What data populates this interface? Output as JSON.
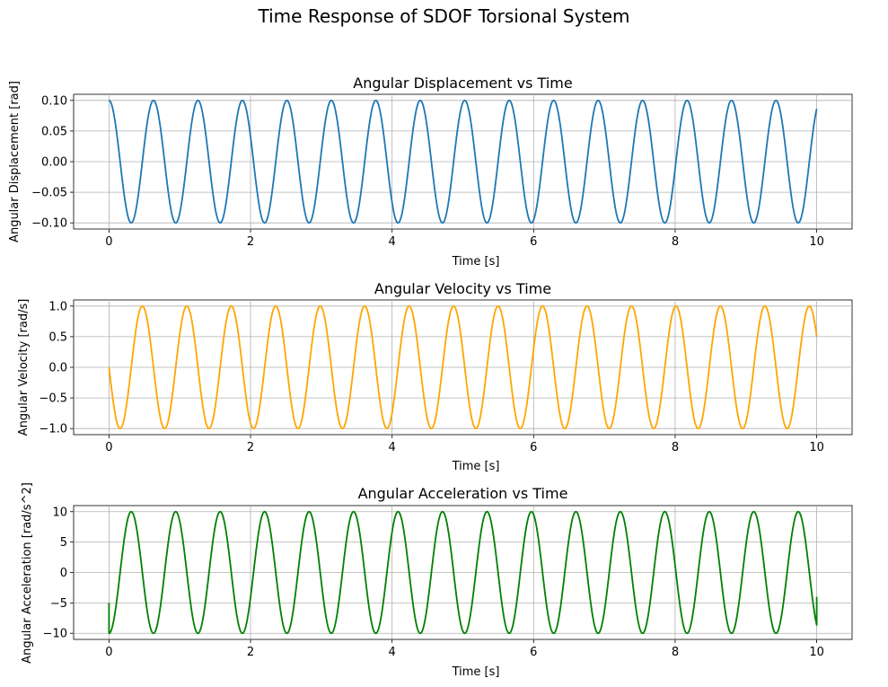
{
  "figure": {
    "suptitle": "Time Response of SDOF Torsional System"
  },
  "chart_data": [
    {
      "type": "line",
      "title": "Angular Displacement vs Time",
      "xlabel": "Time [s]",
      "ylabel": "Angular Displacement [rad]",
      "xlim": [
        -0.5,
        10.5
      ],
      "ylim": [
        -0.11,
        0.11
      ],
      "xticks": [
        0,
        2,
        4,
        6,
        8,
        10
      ],
      "xtick_labels": [
        "0",
        "2",
        "4",
        "6",
        "8",
        "10"
      ],
      "yticks": [
        -0.1,
        -0.05,
        0,
        0.05,
        0.1
      ],
      "ytick_labels": [
        "−0.10",
        "−0.05",
        "0.00",
        "0.05",
        "0.10"
      ],
      "grid": true,
      "series": [
        {
          "color": "#1f77b4",
          "function": "y = 0.1 * cos(10 * t)",
          "x_range": [
            0,
            10
          ],
          "amplitude": 0.1,
          "angular_frequency": 10,
          "phase": 0
        }
      ]
    },
    {
      "type": "line",
      "title": "Angular Velocity vs Time",
      "xlabel": "Time [s]",
      "ylabel": "Angular Velocity [rad/s]",
      "xlim": [
        -0.5,
        10.5
      ],
      "ylim": [
        -1.1,
        1.1
      ],
      "xticks": [
        0,
        2,
        4,
        6,
        8,
        10
      ],
      "xtick_labels": [
        "0",
        "2",
        "4",
        "6",
        "8",
        "10"
      ],
      "yticks": [
        -1,
        -0.5,
        0,
        0.5,
        1
      ],
      "ytick_labels": [
        "−1.0",
        "−0.5",
        "0.0",
        "0.5",
        "1.0"
      ],
      "grid": true,
      "series": [
        {
          "color": "#ffa500",
          "function": "y = -1.0 * sin(10 * t)",
          "x_range": [
            0,
            10
          ],
          "amplitude": 1.0,
          "angular_frequency": 10
        }
      ]
    },
    {
      "type": "line",
      "title": "Angular Acceleration vs Time",
      "xlabel": "Time [s]",
      "ylabel": "Angular Acceleration [rad/s^2]",
      "xlim": [
        -0.5,
        10.5
      ],
      "ylim": [
        -11,
        11
      ],
      "xticks": [
        0,
        2,
        4,
        6,
        8,
        10
      ],
      "xtick_labels": [
        "0",
        "2",
        "4",
        "6",
        "8",
        "10"
      ],
      "yticks": [
        -10,
        -5,
        0,
        5,
        10
      ],
      "ytick_labels": [
        "−10",
        "−5",
        "0",
        "5",
        "10"
      ],
      "grid": true,
      "series": [
        {
          "color": "#008000",
          "function": "y = -10 * cos(10 * t) (numerical derivative; endpoints start at -5 and end near -4)",
          "x_range": [
            0,
            10
          ],
          "amplitude": 10,
          "angular_frequency": 10,
          "start_value": -5,
          "end_value": -4
        }
      ]
    }
  ]
}
